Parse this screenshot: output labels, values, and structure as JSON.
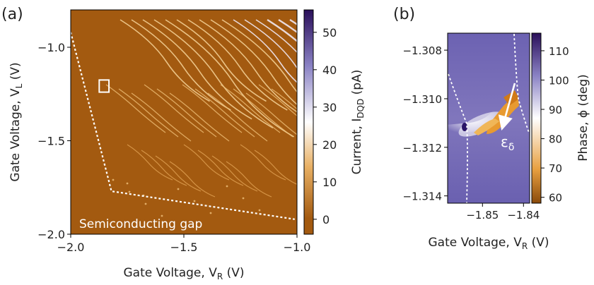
{
  "chart_data": [
    {
      "type": "heatmap",
      "panel_label": "(a)",
      "xlabel": "Gate Voltage, V",
      "xlabel_sub": "R",
      "xlabel_unit": " (V)",
      "ylabel": "Gate Voltage, V",
      "ylabel_sub": "L",
      "ylabel_unit": " (V)",
      "xlim": [
        -2.0,
        -1.0
      ],
      "ylim": [
        -2.0,
        -0.8
      ],
      "xticks": [
        -2.0,
        -1.5,
        -1.0
      ],
      "xtick_labels": [
        "−2.0",
        "−1.5",
        "−1.0"
      ],
      "yticks": [
        -1.0,
        -1.5,
        -2.0
      ],
      "ytick_labels": [
        "−1.0",
        "−1.5",
        "−2.0"
      ],
      "colorbar": {
        "label": "Current, I",
        "label_sub": "DQD",
        "label_unit": " (pA)",
        "range": [
          -4,
          56
        ],
        "ticks": [
          0,
          10,
          20,
          30,
          40,
          50
        ],
        "tick_labels": [
          "0",
          "10",
          "20",
          "30",
          "40",
          "50"
        ],
        "colors": [
          "#a35a10",
          "#e8b064",
          "#ffffff",
          "#8a82c4",
          "#2a0f5a"
        ]
      },
      "annotations": [
        {
          "text": "Semiconducting gap",
          "color": "#ffffff"
        }
      ],
      "gap_boundary": [
        [
          -2.0,
          -0.92
        ],
        [
          -1.82,
          -1.77
        ],
        [
          -1.01,
          -1.92
        ]
      ],
      "highlight_box": {
        "x": [
          -1.874,
          -1.831
        ],
        "y": [
          -1.24,
          -1.175
        ]
      },
      "background_value": 0,
      "line_features": "diagonal bright current lines (~10-50 pA) in upper-right region"
    },
    {
      "type": "heatmap",
      "panel_label": "(b)",
      "xlabel": "Gate Voltage, V",
      "xlabel_sub": "R",
      "xlabel_unit": " (V)",
      "xlim": [
        -1.8585,
        -1.8385
      ],
      "ylim": [
        -1.3143,
        -1.3073
      ],
      "xticks": [
        -1.85,
        -1.84
      ],
      "xtick_labels": [
        "−1.85",
        "−1.84"
      ],
      "yticks": [
        -1.308,
        -1.31,
        -1.312,
        -1.314
      ],
      "ytick_labels": [
        "−1.308",
        "−1.310",
        "−1.312",
        "−1.314"
      ],
      "colorbar": {
        "label": "Phase, ϕ (deg)",
        "range": [
          58,
          116
        ],
        "ticks": [
          60,
          70,
          80,
          90,
          100,
          110
        ],
        "tick_labels": [
          "60",
          "70",
          "80",
          "90",
          "100",
          "110"
        ],
        "colors": [
          "#8a4a0a",
          "#e8a040",
          "#ffffff",
          "#8a82c4",
          "#2a0f5a"
        ]
      },
      "arrow_label": "ε",
      "arrow_label_sub": "δ",
      "background_value": 100
    }
  ]
}
